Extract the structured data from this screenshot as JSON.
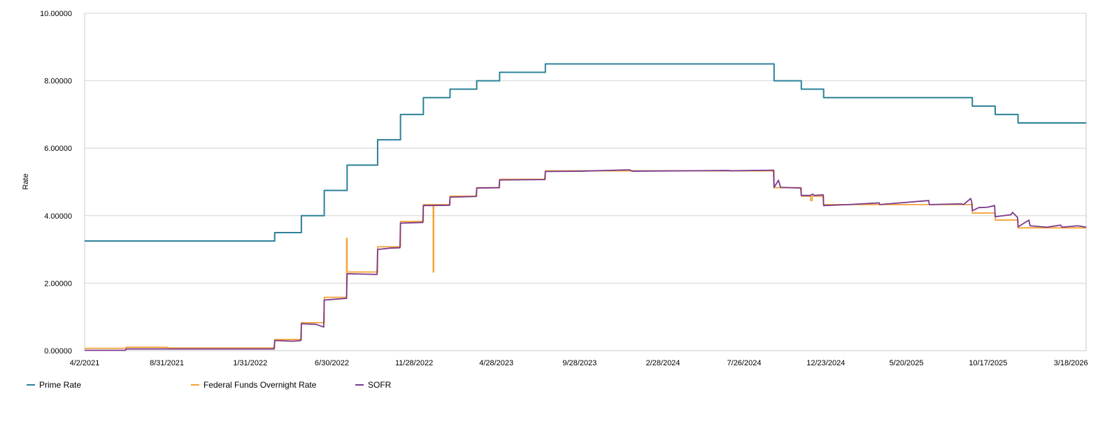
{
  "chart_data": {
    "type": "line",
    "title": "",
    "xlabel": "",
    "ylabel": "Rate",
    "x_range": [
      "4/2/2021",
      "4/15/2026"
    ],
    "ylim": [
      0,
      10
    ],
    "x_ticks": [
      "4/2/2021",
      "8/31/2021",
      "1/31/2022",
      "6/30/2022",
      "11/28/2022",
      "4/28/2023",
      "9/28/2023",
      "2/28/2024",
      "7/26/2024",
      "12/23/2024",
      "5/20/2025",
      "10/17/2025",
      "3/18/2026"
    ],
    "y_ticks": [
      "0.00000",
      "2.00000",
      "4.00000",
      "6.00000",
      "8.00000",
      "10.00000"
    ],
    "grid": "horizontal",
    "legend": "bottom-left",
    "series": [
      {
        "name": "Prime Rate",
        "color": "#2b8199",
        "step": true,
        "points": [
          [
            "2021-04-02",
            3.25
          ],
          [
            "2022-03-17",
            3.5
          ],
          [
            "2022-05-05",
            4.0
          ],
          [
            "2022-06-16",
            4.75
          ],
          [
            "2022-07-28",
            5.5
          ],
          [
            "2022-09-22",
            6.25
          ],
          [
            "2022-11-03",
            7.0
          ],
          [
            "2022-12-15",
            7.5
          ],
          [
            "2023-02-02",
            7.75
          ],
          [
            "2023-03-23",
            8.0
          ],
          [
            "2023-05-04",
            8.25
          ],
          [
            "2023-07-27",
            8.5
          ],
          [
            "2024-09-19",
            8.0
          ],
          [
            "2024-11-08",
            7.75
          ],
          [
            "2024-12-19",
            7.5
          ],
          [
            "2025-09-18",
            7.25
          ],
          [
            "2025-10-30",
            7.0
          ],
          [
            "2025-12-11",
            6.75
          ],
          [
            "2026-04-15",
            6.75
          ]
        ]
      },
      {
        "name": "Federal Funds Overnight Rate",
        "color": "#f5a43a",
        "step": true,
        "points": [
          [
            "2021-04-02",
            0.07
          ],
          [
            "2021-06-17",
            0.1
          ],
          [
            "2021-09-01",
            0.08
          ],
          [
            "2022-03-17",
            0.33
          ],
          [
            "2022-05-05",
            0.83
          ],
          [
            "2022-06-16",
            1.58
          ],
          [
            "2022-07-27",
            3.33
          ],
          [
            "2022-07-28",
            2.33
          ],
          [
            "2022-09-22",
            3.08
          ],
          [
            "2022-11-03",
            3.83
          ],
          [
            "2022-12-15",
            4.33
          ],
          [
            "2023-01-01",
            4.33
          ],
          [
            "2023-01-02",
            2.33
          ],
          [
            "2023-01-03",
            4.33
          ],
          [
            "2023-02-02",
            4.58
          ],
          [
            "2023-03-23",
            4.83
          ],
          [
            "2023-05-04",
            5.08
          ],
          [
            "2023-07-27",
            5.33
          ],
          [
            "2024-09-19",
            4.83
          ],
          [
            "2024-11-08",
            4.58
          ],
          [
            "2024-11-25",
            4.45
          ],
          [
            "2024-11-28",
            4.58
          ],
          [
            "2024-12-19",
            4.33
          ],
          [
            "2025-09-18",
            4.08
          ],
          [
            "2025-10-30",
            3.87
          ],
          [
            "2025-12-11",
            3.64
          ],
          [
            "2026-04-15",
            3.64
          ]
        ]
      },
      {
        "name": "SOFR",
        "color": "#7b3a8c",
        "step": false,
        "points": [
          [
            "2021-04-02",
            0.01
          ],
          [
            "2021-06-16",
            0.01
          ],
          [
            "2021-06-17",
            0.05
          ],
          [
            "2021-12-31",
            0.05
          ],
          [
            "2022-03-16",
            0.05
          ],
          [
            "2022-03-17",
            0.3
          ],
          [
            "2022-04-20",
            0.28
          ],
          [
            "2022-05-04",
            0.3
          ],
          [
            "2022-05-05",
            0.8
          ],
          [
            "2022-06-01",
            0.78
          ],
          [
            "2022-06-15",
            0.7
          ],
          [
            "2022-06-16",
            1.5
          ],
          [
            "2022-07-27",
            1.55
          ],
          [
            "2022-07-28",
            2.28
          ],
          [
            "2022-09-21",
            2.26
          ],
          [
            "2022-09-22",
            3.0
          ],
          [
            "2022-10-15",
            3.04
          ],
          [
            "2022-11-02",
            3.05
          ],
          [
            "2022-11-03",
            3.78
          ],
          [
            "2022-12-14",
            3.8
          ],
          [
            "2022-12-15",
            4.3
          ],
          [
            "2023-02-01",
            4.31
          ],
          [
            "2023-02-02",
            4.55
          ],
          [
            "2023-03-22",
            4.57
          ],
          [
            "2023-03-23",
            4.82
          ],
          [
            "2023-05-03",
            4.83
          ],
          [
            "2023-05-04",
            5.06
          ],
          [
            "2023-07-26",
            5.07
          ],
          [
            "2023-07-27",
            5.31
          ],
          [
            "2023-10-01",
            5.32
          ],
          [
            "2023-12-29",
            5.36
          ],
          [
            "2024-01-02",
            5.32
          ],
          [
            "2024-06-28",
            5.34
          ],
          [
            "2024-07-01",
            5.33
          ],
          [
            "2024-09-18",
            5.35
          ],
          [
            "2024-09-19",
            4.84
          ],
          [
            "2024-09-27",
            5.05
          ],
          [
            "2024-10-01",
            4.84
          ],
          [
            "2024-11-07",
            4.82
          ],
          [
            "2024-11-08",
            4.6
          ],
          [
            "2024-11-25",
            4.6
          ],
          [
            "2024-11-29",
            4.64
          ],
          [
            "2024-12-02",
            4.6
          ],
          [
            "2024-12-18",
            4.62
          ],
          [
            "2024-12-19",
            4.3
          ],
          [
            "2025-02-03",
            4.33
          ],
          [
            "2025-03-31",
            4.38
          ],
          [
            "2025-04-01",
            4.33
          ],
          [
            "2025-06-30",
            4.45
          ],
          [
            "2025-07-01",
            4.33
          ],
          [
            "2025-08-29",
            4.35
          ],
          [
            "2025-09-02",
            4.33
          ],
          [
            "2025-09-15",
            4.51
          ],
          [
            "2025-09-17",
            4.4
          ],
          [
            "2025-09-18",
            4.15
          ],
          [
            "2025-09-30",
            4.24
          ],
          [
            "2025-10-15",
            4.25
          ],
          [
            "2025-10-29",
            4.3
          ],
          [
            "2025-10-30",
            3.97
          ],
          [
            "2025-11-28",
            4.03
          ],
          [
            "2025-12-01",
            4.1
          ],
          [
            "2025-12-10",
            3.95
          ],
          [
            "2025-12-11",
            3.67
          ],
          [
            "2025-12-31",
            3.87
          ],
          [
            "2026-01-02",
            3.7
          ],
          [
            "2026-02-02",
            3.66
          ],
          [
            "2026-02-27",
            3.72
          ],
          [
            "2026-03-02",
            3.66
          ],
          [
            "2026-03-31",
            3.7
          ],
          [
            "2026-04-15",
            3.66
          ]
        ]
      }
    ]
  }
}
